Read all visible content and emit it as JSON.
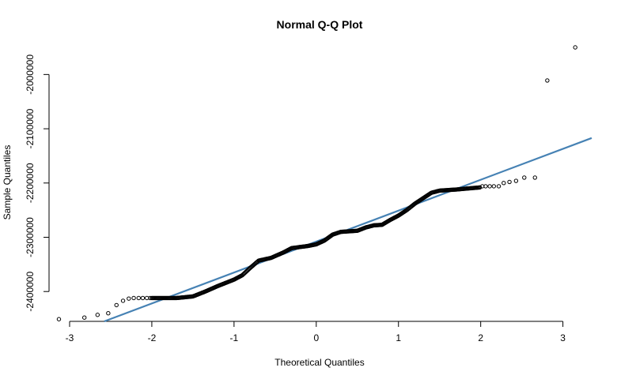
{
  "chart_data": {
    "type": "scatter",
    "title": "Normal Q-Q Plot",
    "xlabel": "Theoretical Quantiles",
    "ylabel": "Sample Quantiles",
    "xlim": [
      -3.25,
      3.35
    ],
    "ylim": [
      -2455000,
      -1950000
    ],
    "x_ticks": [
      -3,
      -2,
      -1,
      0,
      1,
      2,
      3
    ],
    "x_tick_labels": [
      "-3",
      "-2",
      "-1",
      "0",
      "1",
      "2",
      "3"
    ],
    "y_ticks": [
      -2400000,
      -2300000,
      -2200000,
      -2100000,
      -2000000
    ],
    "y_tick_labels": [
      "-2400000",
      "-2300000",
      "-2200000",
      "-2100000",
      "-2000000"
    ],
    "grid": false,
    "legend": "none",
    "reference_line": {
      "slope": 57000,
      "intercept": -2308000,
      "color": "#4682b4"
    },
    "tail_points": [
      {
        "x": -3.13,
        "y": -2451000
      },
      {
        "x": -2.82,
        "y": -2448000
      },
      {
        "x": -2.66,
        "y": -2443000
      },
      {
        "x": -2.53,
        "y": -2440000
      },
      {
        "x": -2.43,
        "y": -2425000
      },
      {
        "x": -2.35,
        "y": -2417000
      },
      {
        "x": -2.28,
        "y": -2413000
      },
      {
        "x": -2.22,
        "y": -2412000
      },
      {
        "x": -2.16,
        "y": -2412000
      },
      {
        "x": -2.11,
        "y": -2412000
      },
      {
        "x": -2.06,
        "y": -2412000
      },
      {
        "x": -2.02,
        "y": -2412000
      },
      {
        "x": 2.02,
        "y": -2206000
      },
      {
        "x": 2.06,
        "y": -2206000
      },
      {
        "x": 2.11,
        "y": -2206000
      },
      {
        "x": 2.16,
        "y": -2206000
      },
      {
        "x": 2.22,
        "y": -2206000
      },
      {
        "x": 2.28,
        "y": -2200000
      },
      {
        "x": 2.35,
        "y": -2198000
      },
      {
        "x": 2.43,
        "y": -2196000
      },
      {
        "x": 2.53,
        "y": -2190000
      },
      {
        "x": 2.66,
        "y": -2190000
      },
      {
        "x": 2.81,
        "y": -2011000
      },
      {
        "x": 3.15,
        "y": -1950000
      }
    ],
    "body_curve": [
      {
        "x": -2.0,
        "y": -2412000
      },
      {
        "x": -1.7,
        "y": -2412000
      },
      {
        "x": -1.5,
        "y": -2409000
      },
      {
        "x": -1.35,
        "y": -2400000
      },
      {
        "x": -1.2,
        "y": -2390000
      },
      {
        "x": -1.0,
        "y": -2378000
      },
      {
        "x": -0.9,
        "y": -2370000
      },
      {
        "x": -0.8,
        "y": -2356000
      },
      {
        "x": -0.7,
        "y": -2343000
      },
      {
        "x": -0.55,
        "y": -2338000
      },
      {
        "x": -0.4,
        "y": -2328000
      },
      {
        "x": -0.3,
        "y": -2320000
      },
      {
        "x": -0.1,
        "y": -2316000
      },
      {
        "x": 0.0,
        "y": -2313000
      },
      {
        "x": 0.1,
        "y": -2306000
      },
      {
        "x": 0.2,
        "y": -2295000
      },
      {
        "x": 0.3,
        "y": -2290000
      },
      {
        "x": 0.5,
        "y": -2288000
      },
      {
        "x": 0.6,
        "y": -2282000
      },
      {
        "x": 0.7,
        "y": -2278000
      },
      {
        "x": 0.8,
        "y": -2277000
      },
      {
        "x": 0.9,
        "y": -2268000
      },
      {
        "x": 1.0,
        "y": -2260000
      },
      {
        "x": 1.1,
        "y": -2250000
      },
      {
        "x": 1.2,
        "y": -2238000
      },
      {
        "x": 1.3,
        "y": -2228000
      },
      {
        "x": 1.4,
        "y": -2218000
      },
      {
        "x": 1.5,
        "y": -2214000
      },
      {
        "x": 1.7,
        "y": -2212000
      },
      {
        "x": 2.0,
        "y": -2208000
      }
    ]
  }
}
